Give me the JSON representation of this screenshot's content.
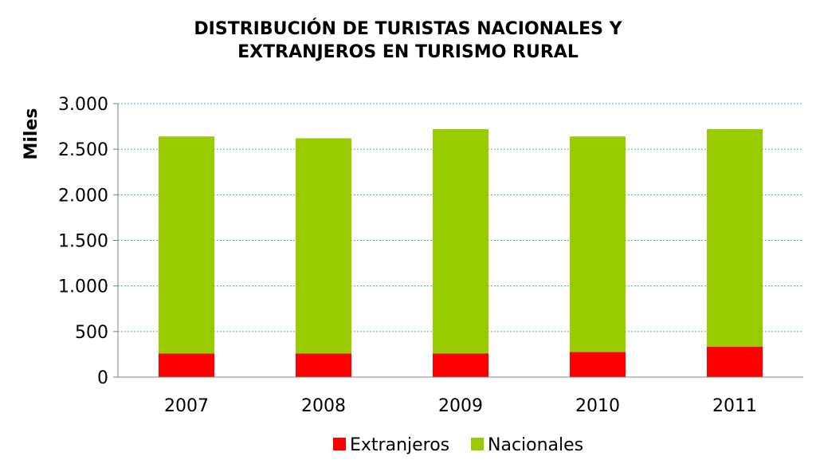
{
  "chart_data": {
    "type": "bar",
    "stacked": true,
    "title_lines": [
      "DISTRIBUCIÓN DE TURISTAS NACIONALES Y",
      "EXTRANJEROS EN TURISMO RURAL"
    ],
    "xlabel": "",
    "ylabel": "Miles",
    "categories": [
      "2007",
      "2008",
      "2009",
      "2010",
      "2011"
    ],
    "series": [
      {
        "name": "Extranjeros",
        "color": "#ff0000",
        "values": [
          258,
          258,
          258,
          275,
          335
        ]
      },
      {
        "name": "Nacionales",
        "color": "#99cc00",
        "values": [
          2382,
          2362,
          2462,
          2365,
          2385
        ]
      }
    ],
    "ylim": [
      0,
      3000
    ],
    "yticks": [
      0,
      500,
      1000,
      1500,
      2000,
      2500,
      3000
    ],
    "ytick_labels": [
      "0",
      "500",
      "1.000",
      "1.500",
      "2.000",
      "2.500",
      "3.000"
    ],
    "grid": true,
    "grid_color": "#4bacc6",
    "legend_position": "bottom"
  }
}
